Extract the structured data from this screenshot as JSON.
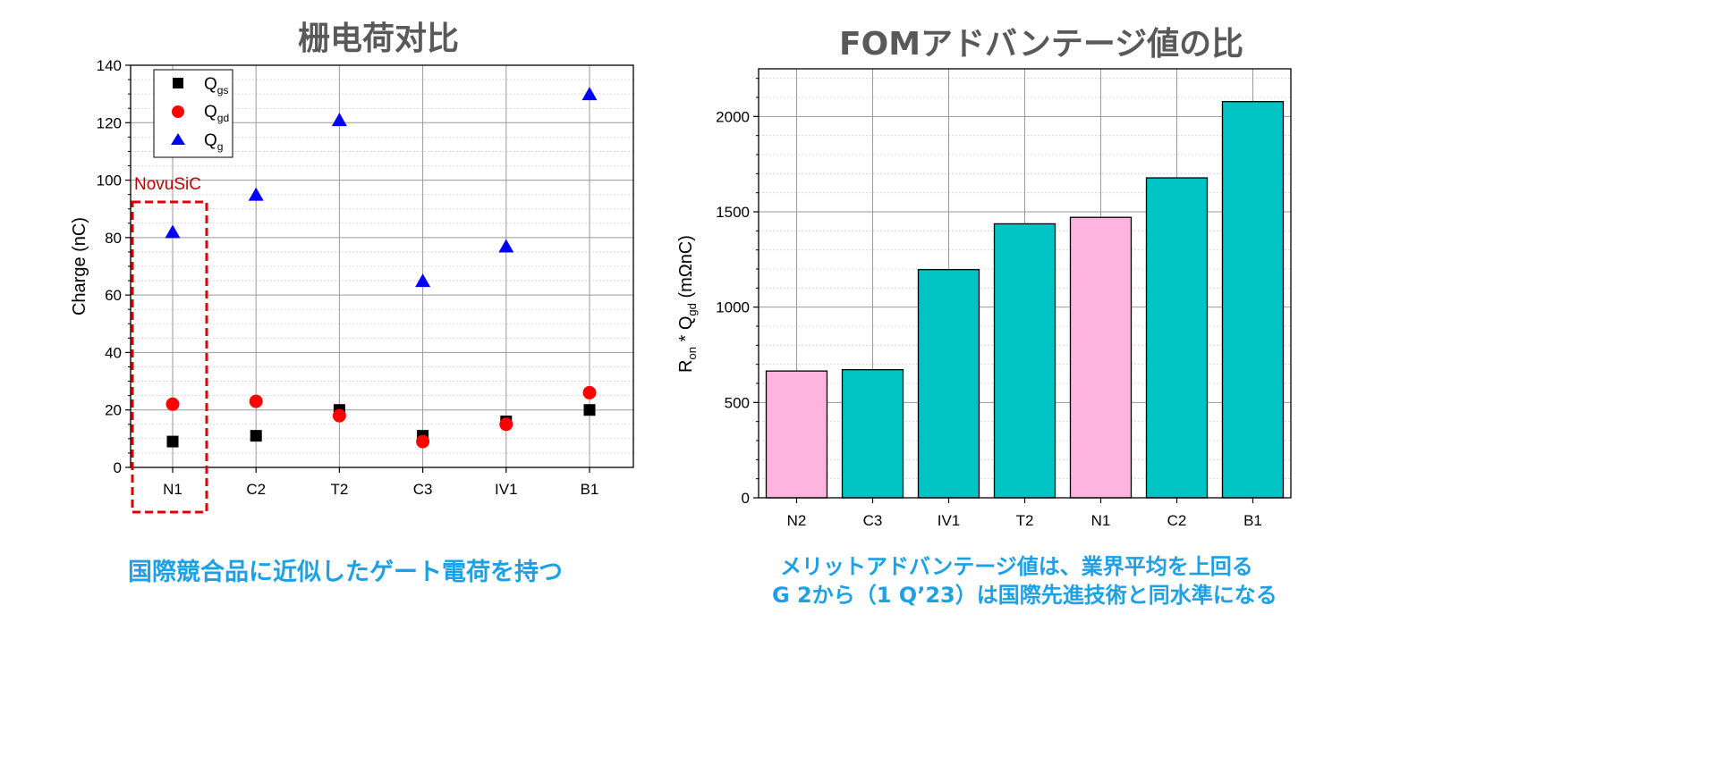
{
  "left_chart": {
    "title": "栅电荷对比",
    "caption": "国際競合品に近似したゲート電荷を持つ",
    "annotation": "NovuSiC",
    "chart_data": {
      "type": "scatter",
      "categories": [
        "N1",
        "C2",
        "T2",
        "C3",
        "IV1",
        "B1"
      ],
      "ylabel": "Charge (nC)",
      "ylim": [
        0,
        140
      ],
      "yticks": [
        0,
        20,
        40,
        60,
        80,
        100,
        120,
        140
      ],
      "grid": true,
      "legend_position": "top-left",
      "series": [
        {
          "name": "Q",
          "sub": "gs",
          "marker": "square",
          "color": "#000000",
          "values": [
            9,
            11,
            20,
            11,
            16,
            20
          ]
        },
        {
          "name": "Q",
          "sub": "gd",
          "marker": "circle",
          "color": "#ff0000",
          "values": [
            22,
            23,
            18,
            9,
            15,
            26
          ]
        },
        {
          "name": "Q",
          "sub": "g",
          "marker": "triangle",
          "color": "#0000ff",
          "values": [
            82,
            95,
            121,
            65,
            77,
            130
          ]
        }
      ]
    }
  },
  "right_chart": {
    "title": "FOMアドバンテージ値の比",
    "caption_line1": "メリットアドバンテージ値は、業界平均を上回る",
    "caption_line2": "G 2から（1 Q’23）は国際先進技術と同水準になる",
    "chart_data": {
      "type": "bar",
      "categories": [
        "N2",
        "C3",
        "IV1",
        "T2",
        "N1",
        "C2",
        "B1"
      ],
      "values": [
        665,
        672,
        1197,
        1437,
        1471,
        1678,
        2078
      ],
      "colors": [
        "#ffb3de",
        "#00c4c4",
        "#00c4c4",
        "#00c4c4",
        "#ffb3de",
        "#00c4c4",
        "#00c4c4"
      ],
      "ylabel_main": "R",
      "ylabel_sub1": "on",
      "ylabel_mid": " * Q",
      "ylabel_sub2": "gd",
      "ylabel_unit": " (mΩnC)",
      "ylim": [
        0,
        2250
      ],
      "yticks": [
        0,
        500,
        1000,
        1500,
        2000
      ],
      "grid": true
    }
  }
}
